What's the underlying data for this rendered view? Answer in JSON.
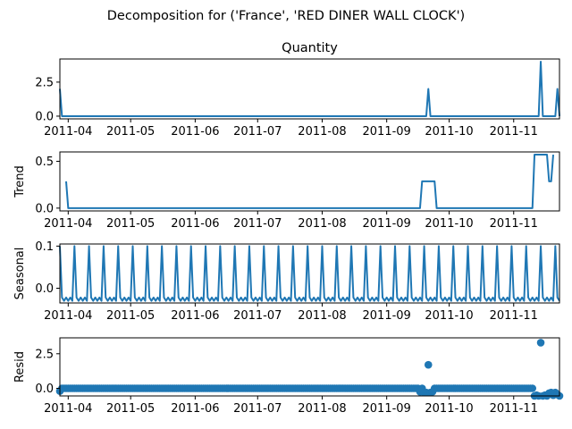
{
  "figure": {
    "suptitle": "Decomposition for ('France', 'RED DINER WALL CLOCK')",
    "line_color": "#1f77b4",
    "x_ticks": [
      "2011-04",
      "2011-05",
      "2011-06",
      "2011-07",
      "2011-08",
      "2011-09",
      "2011-10",
      "2011-11"
    ]
  },
  "chart_data": [
    {
      "type": "line",
      "title": "Quantity",
      "ylabel": "",
      "ylim": [
        -0.2,
        4.2
      ],
      "yticks": [
        0.0,
        2.5
      ],
      "ytick_labels": [
        "0.0",
        "2.5"
      ],
      "xlim": [
        "2011-03-28",
        "2011-11-23"
      ],
      "points": [
        [
          "2011-03-28",
          2
        ],
        [
          "2011-03-29",
          0
        ],
        [
          "2011-09-20",
          0
        ],
        [
          "2011-09-21",
          2
        ],
        [
          "2011-09-22",
          0
        ],
        [
          "2011-11-13",
          0
        ],
        [
          "2011-11-14",
          4
        ],
        [
          "2011-11-15",
          0
        ],
        [
          "2011-11-21",
          0
        ],
        [
          "2011-11-22",
          2
        ],
        [
          "2011-11-23",
          0
        ]
      ]
    },
    {
      "type": "line",
      "title": "",
      "ylabel": "Trend",
      "ylim": [
        -0.03,
        0.6
      ],
      "yticks": [
        0.0,
        0.5
      ],
      "ytick_labels": [
        "0.0",
        "0.5"
      ],
      "xlim": [
        "2011-03-28",
        "2011-11-23"
      ],
      "points": [
        [
          "2011-03-31",
          0.286
        ],
        [
          "2011-04-01",
          0
        ],
        [
          "2011-09-17",
          0
        ],
        [
          "2011-09-18",
          0.286
        ],
        [
          "2011-09-24",
          0.286
        ],
        [
          "2011-09-25",
          0
        ],
        [
          "2011-11-10",
          0
        ],
        [
          "2011-11-11",
          0.571
        ],
        [
          "2011-11-17",
          0.571
        ],
        [
          "2011-11-18",
          0.286
        ],
        [
          "2011-11-19",
          0.286
        ],
        [
          "2011-11-20",
          0.571
        ]
      ]
    },
    {
      "type": "line",
      "title": "",
      "ylabel": "Seasonal",
      "ylim": [
        -0.035,
        0.105
      ],
      "yticks": [
        0.0,
        0.1
      ],
      "ytick_labels": [
        "0.0",
        "0.1"
      ],
      "xlim": [
        "2011-03-28",
        "2011-11-23"
      ],
      "period_start": "2011-03-28",
      "period_days": 7,
      "weekly_pattern": [
        0.1,
        -0.022,
        -0.03,
        -0.022,
        -0.03,
        -0.022,
        -0.03
      ]
    },
    {
      "type": "scatter",
      "title": "",
      "ylabel": "Resid",
      "ylim": [
        -0.55,
        3.65
      ],
      "yticks": [
        0.0,
        2.5
      ],
      "ytick_labels": [
        "0.0",
        "2.5"
      ],
      "xlim": [
        "2011-03-28",
        "2011-11-23"
      ],
      "default_value": 0,
      "overrides": [
        [
          "2011-03-28",
          -0.2
        ],
        [
          "2011-09-17",
          -0.25
        ],
        [
          "2011-09-19",
          -0.3
        ],
        [
          "2011-09-20",
          -0.3
        ],
        [
          "2011-09-21",
          1.7
        ],
        [
          "2011-09-22",
          -0.3
        ],
        [
          "2011-09-23",
          -0.25
        ],
        [
          "2011-11-11",
          -0.55
        ],
        [
          "2011-11-12",
          -0.5
        ],
        [
          "2011-11-13",
          -0.55
        ],
        [
          "2011-11-14",
          3.3
        ],
        [
          "2011-11-15",
          -0.55
        ],
        [
          "2011-11-16",
          -0.5
        ],
        [
          "2011-11-17",
          -0.55
        ],
        [
          "2011-11-18",
          -0.35
        ],
        [
          "2011-11-19",
          -0.3
        ],
        [
          "2011-11-20",
          -0.5
        ],
        [
          "2011-11-21",
          -0.3
        ],
        [
          "2011-11-22",
          -0.45
        ],
        [
          "2011-11-23",
          -0.55
        ]
      ]
    }
  ]
}
